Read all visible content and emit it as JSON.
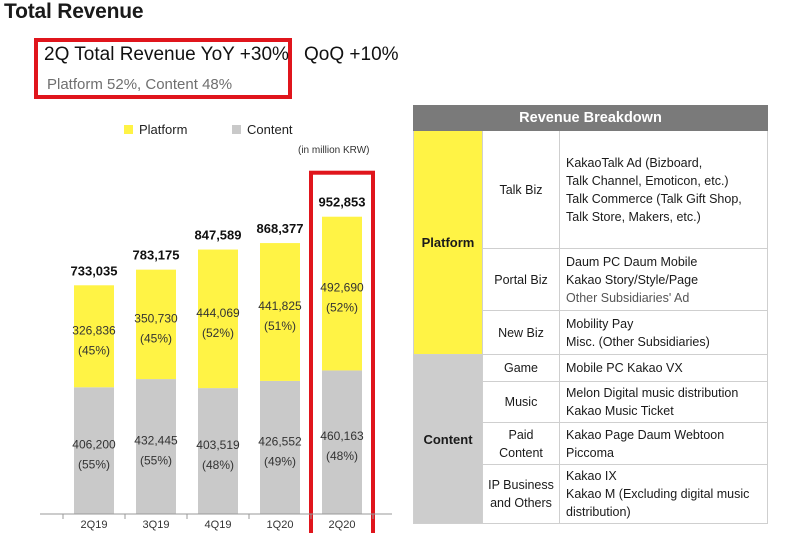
{
  "page_title": "Total Revenue",
  "highlight": {
    "main": "2Q Total Revenue YoY +30%",
    "qoq": "QoQ +10%",
    "sub": "Platform 52%, Content 48%"
  },
  "colors": {
    "platform": "#fff345",
    "content": "#c9c9c9",
    "highlight_border": "#e0151c",
    "table_header": "#7a7a7a"
  },
  "chart_data": {
    "type": "bar",
    "stacked": true,
    "title": "Total Revenue",
    "unit": "(in million KRW)",
    "categories": [
      "2Q19",
      "3Q19",
      "4Q19",
      "1Q20",
      "2Q20"
    ],
    "totals": [
      "733,035",
      "783,175",
      "847,589",
      "868,377",
      "952,853"
    ],
    "total_values": [
      733035,
      783175,
      847589,
      868377,
      952853
    ],
    "highlighted_category": "2Q20",
    "ylim": [
      0,
      1000000
    ],
    "legend": [
      {
        "name": "Platform",
        "color": "#fff345"
      },
      {
        "name": "Content",
        "color": "#c9c9c9"
      }
    ],
    "series": [
      {
        "name": "Content",
        "values": [
          406200,
          432445,
          403519,
          426552,
          460163
        ],
        "labels": [
          "406,200",
          "432,445",
          "403,519",
          "426,552",
          "460,163"
        ],
        "shares": [
          "(55%)",
          "(55%)",
          "(48%)",
          "(49%)",
          "(48%)"
        ]
      },
      {
        "name": "Platform",
        "values": [
          326836,
          350730,
          444069,
          441825,
          492690
        ],
        "labels": [
          "326,836",
          "350,730",
          "444,069",
          "441,825",
          "492,690"
        ],
        "shares": [
          "(45%)",
          "(45%)",
          "(52%)",
          "(51%)",
          "(52%)"
        ]
      }
    ]
  },
  "breakdown": {
    "title": "Revenue Breakdown",
    "platform": {
      "label": "Platform",
      "rows": [
        {
          "sub": [
            "Talk Biz"
          ],
          "lines": [
            "KakaoTalk Ad (Bizboard,",
            "Talk Channel, Emoticon, etc.)",
            "Talk Commerce (Talk Gift Shop,",
            "Talk Store, Makers, etc.)"
          ]
        },
        {
          "sub": [
            "Portal Biz"
          ],
          "lines": [
            "Daum PC    Daum Mobile",
            "Kakao Story/Style/Page",
            "Other Subsidiaries' Ad"
          ]
        },
        {
          "sub": [
            "New Biz"
          ],
          "lines": [
            "Mobility    Pay",
            "Misc. (Other Subsidiaries)"
          ]
        }
      ]
    },
    "content": {
      "label": "Content",
      "rows": [
        {
          "sub": [
            "Game"
          ],
          "lines": [
            "Mobile    PC    Kakao VX"
          ]
        },
        {
          "sub": [
            "Music"
          ],
          "lines": [
            "Melon    Digital music distribution",
            "Kakao Music    Ticket"
          ]
        },
        {
          "sub": [
            "Paid",
            "Content"
          ],
          "lines": [
            "Kakao Page    Daum Webtoon",
            "Piccoma"
          ]
        },
        {
          "sub": [
            "IP Business",
            "and Others"
          ],
          "lines": [
            "Kakao IX",
            "Kakao M (Excluding digital music",
            "distribution)"
          ]
        }
      ]
    }
  }
}
